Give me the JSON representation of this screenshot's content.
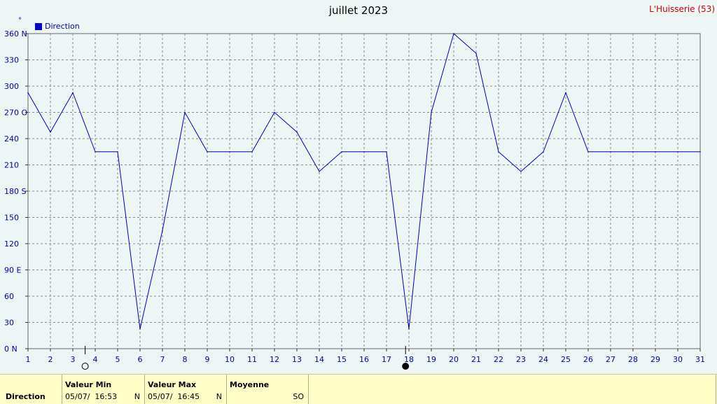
{
  "header": {
    "title": "juillet 2023",
    "station": "L'Huisserie (53)",
    "unit_mark": "°"
  },
  "legend": {
    "label": "Direction"
  },
  "colors": {
    "line": "#0000cc",
    "axis_text": "#0000aa",
    "grid": "#999999",
    "station": "#cc0000",
    "footer_bg": "#ffffc8"
  },
  "chart_data": {
    "type": "line",
    "title": "juillet 2023",
    "xlabel": "",
    "ylabel": "°",
    "x": [
      1,
      2,
      3,
      4,
      5,
      6,
      7,
      8,
      9,
      10,
      11,
      12,
      13,
      14,
      15,
      16,
      17,
      18,
      19,
      20,
      21,
      22,
      23,
      24,
      25,
      26,
      27,
      28,
      29,
      30,
      31
    ],
    "series": [
      {
        "name": "Direction",
        "values": [
          292.5,
          247.5,
          292.5,
          225,
          225,
          22.5,
          135,
          270,
          225,
          225,
          225,
          270,
          247.5,
          202.5,
          225,
          225,
          225,
          22.5,
          270,
          360,
          337.5,
          225,
          202.5,
          225,
          292.5,
          225,
          225,
          225,
          225,
          225,
          225
        ]
      }
    ],
    "ylim": [
      0,
      360
    ],
    "xlim": [
      1,
      31
    ],
    "y_ticks": [
      {
        "value": 0,
        "label": "0   N"
      },
      {
        "value": 30,
        "label": "30"
      },
      {
        "value": 60,
        "label": "60"
      },
      {
        "value": 90,
        "label": "90  E"
      },
      {
        "value": 120,
        "label": "120"
      },
      {
        "value": 150,
        "label": "150"
      },
      {
        "value": 180,
        "label": "180 S"
      },
      {
        "value": 210,
        "label": "210"
      },
      {
        "value": 240,
        "label": "240"
      },
      {
        "value": 270,
        "label": "270 O"
      },
      {
        "value": 300,
        "label": "300"
      },
      {
        "value": 330,
        "label": "330"
      },
      {
        "value": 360,
        "label": "360 N"
      }
    ],
    "x_ticks": [
      "1",
      "2",
      "3",
      "4",
      "5",
      "6",
      "7",
      "8",
      "9",
      "10",
      "11",
      "12",
      "13",
      "14",
      "15",
      "16",
      "17",
      "18",
      "19",
      "20",
      "21",
      "22",
      "23",
      "24",
      "25",
      "26",
      "27",
      "28",
      "29",
      "30",
      "31"
    ],
    "grid": true,
    "legend_position": "top-left",
    "markers": [
      {
        "x": 3.55,
        "kind": "open-circle"
      },
      {
        "x": 17.85,
        "kind": "filled-circle"
      }
    ]
  },
  "footer": {
    "row_label": "Direction",
    "min": {
      "header": "Valeur Min",
      "date": "05/07/",
      "time": "16:53",
      "dir": "N"
    },
    "max": {
      "header": "Valeur Max",
      "date": "05/07/",
      "time": "16:45",
      "dir": "N"
    },
    "avg": {
      "header": "Moyenne",
      "dir": "SO"
    }
  }
}
